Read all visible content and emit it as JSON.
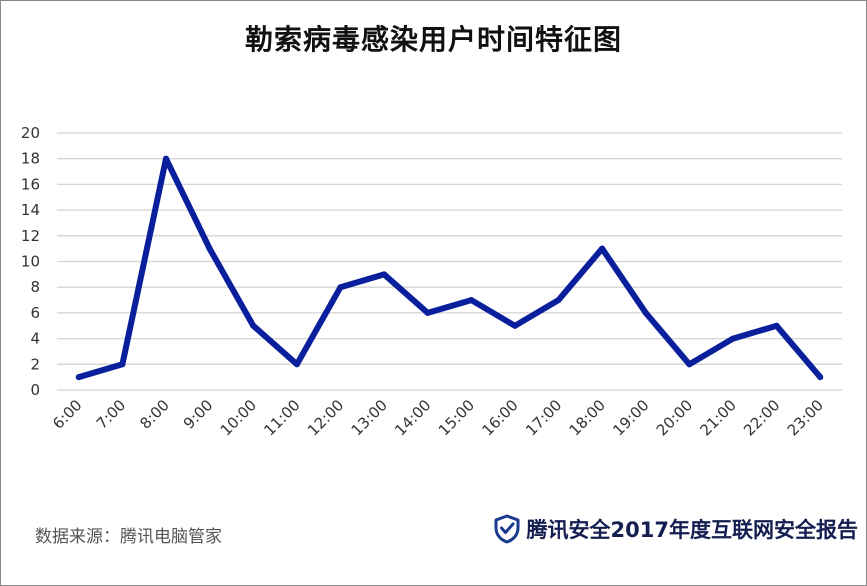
{
  "title": "勒索病毒感染用户时间特征图",
  "footer": {
    "source": "数据来源：腾讯电脑管家",
    "brand": "腾讯安全2017年度互联网安全报告"
  },
  "colors": {
    "series": "#0a1f9c",
    "grid": "#d4d4d4",
    "brand_icon": "#1a3a8f"
  },
  "icons": {
    "brand": "shield-check-icon"
  },
  "chart_data": {
    "type": "line",
    "title": "勒索病毒感染用户时间特征图",
    "xlabel": "",
    "ylabel": "",
    "categories": [
      "6:00",
      "7:00",
      "8:00",
      "9:00",
      "10:00",
      "11:00",
      "12:00",
      "13:00",
      "14:00",
      "15:00",
      "16:00",
      "17:00",
      "18:00",
      "19:00",
      "20:00",
      "21:00",
      "22:00",
      "23:00"
    ],
    "series": [
      {
        "values": [
          1,
          2,
          18,
          11,
          5,
          2,
          8,
          9,
          6,
          7,
          5,
          7,
          11,
          6,
          2,
          4,
          5,
          1
        ]
      }
    ],
    "ylim": [
      0,
      20
    ],
    "yticks": [
      "0",
      "2",
      "4",
      "6",
      "8",
      "10",
      "12",
      "14",
      "16",
      "18",
      "20"
    ],
    "grid": true,
    "legend": "none"
  }
}
